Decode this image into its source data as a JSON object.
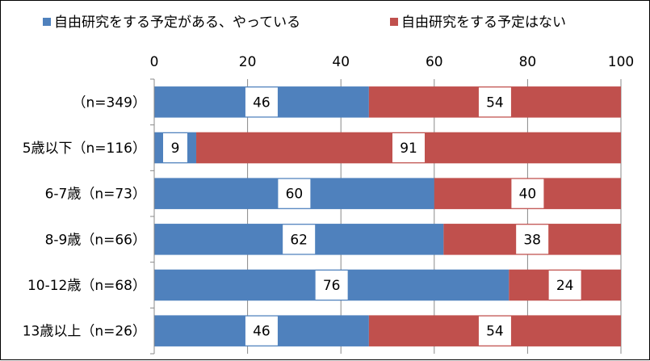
{
  "chart_data": {
    "type": "bar",
    "orientation": "horizontal",
    "stacked": true,
    "categories": [
      "（n=349）",
      "5歳以下（n=116）",
      "6-7歳（n=73）",
      "8-9歳（n=66）",
      "10-12歳（n=68）",
      "13歳以上（n=26）"
    ],
    "series": [
      {
        "name": "自由研究をする予定がある、やっている",
        "color": "#4F81BD",
        "values": [
          46,
          9,
          60,
          62,
          76,
          46
        ]
      },
      {
        "name": "自由研究をする予定はない",
        "color": "#C0504D",
        "values": [
          54,
          91,
          40,
          38,
          24,
          54
        ]
      }
    ],
    "xlim": [
      0,
      100
    ],
    "xticks": [
      0,
      20,
      40,
      60,
      80,
      100
    ],
    "title": "",
    "xlabel": "",
    "ylabel": "",
    "grid": true,
    "legend_position": "top",
    "data_labels": true
  }
}
